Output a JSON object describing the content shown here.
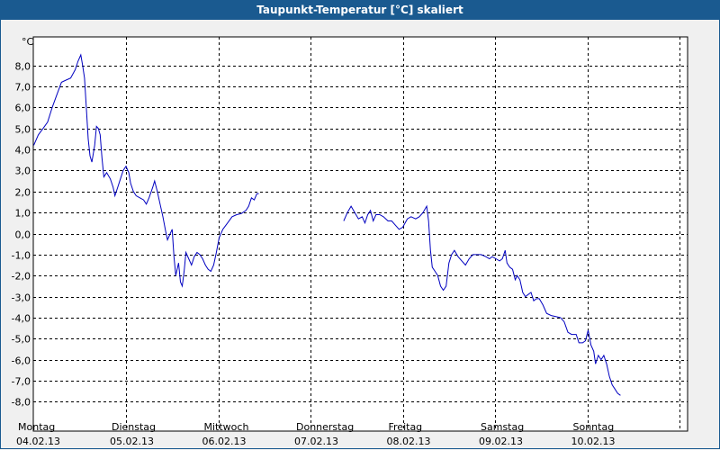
{
  "window": {
    "title": "Taupunkt-Temperatur [°C] skaliert"
  },
  "chart_data": {
    "type": "line",
    "title": "Taupunkt-Temperatur [°C] skaliert",
    "ylabel": "°C",
    "xlabel": "",
    "ylim": [
      -8.5,
      9.25
    ],
    "y_ticks": [
      "8,0",
      "7,0",
      "6,0",
      "5,0",
      "4,0",
      "3,0",
      "2,0",
      "1,0",
      "0,0",
      "-1,0",
      "-2,0",
      "-3,0",
      "-4,0",
      "-5,0",
      "-6,0",
      "-7,0",
      "-8,0"
    ],
    "y_tick_values": [
      8,
      7,
      6,
      5,
      4,
      3,
      2,
      1,
      0,
      -1,
      -2,
      -3,
      -4,
      -5,
      -6,
      -7,
      -8
    ],
    "x_ticks": [
      {
        "day": "Montag",
        "date": "04.02.13"
      },
      {
        "day": "Dienstag",
        "date": "05.02.13"
      },
      {
        "day": "Mittwoch",
        "date": "06.02.13"
      },
      {
        "day": "Donnerstag",
        "date": "07.02.13"
      },
      {
        "day": "Freitag",
        "date": "08.02.13"
      },
      {
        "day": "Samstag",
        "date": "09.02.13"
      },
      {
        "day": "Sonntag",
        "date": "10.02.13"
      }
    ],
    "grid": true,
    "x_unit": "days since start of axis (Monday 04.02.13 00:00)",
    "series": [
      {
        "name": "",
        "color": "#0000c0",
        "segments": [
          [
            [
              0.0,
              4.2
            ],
            [
              0.05,
              4.7
            ],
            [
              0.1,
              5.0
            ],
            [
              0.15,
              5.3
            ],
            [
              0.2,
              6.0
            ],
            [
              0.25,
              6.6
            ],
            [
              0.3,
              7.2
            ],
            [
              0.35,
              7.3
            ],
            [
              0.4,
              7.4
            ],
            [
              0.45,
              7.8
            ],
            [
              0.48,
              8.2
            ],
            [
              0.51,
              8.5
            ],
            [
              0.53,
              8.0
            ],
            [
              0.55,
              7.4
            ],
            [
              0.57,
              6.0
            ],
            [
              0.59,
              4.5
            ],
            [
              0.61,
              3.7
            ],
            [
              0.63,
              3.4
            ],
            [
              0.66,
              4.2
            ],
            [
              0.68,
              5.1
            ],
            [
              0.7,
              5.0
            ],
            [
              0.72,
              4.7
            ],
            [
              0.74,
              3.6
            ],
            [
              0.76,
              2.7
            ],
            [
              0.79,
              2.9
            ],
            [
              0.83,
              2.6
            ],
            [
              0.86,
              2.2
            ],
            [
              0.88,
              1.8
            ],
            [
              0.91,
              2.2
            ],
            [
              0.94,
              2.6
            ],
            [
              0.97,
              3.0
            ],
            [
              1.0,
              3.2
            ],
            [
              1.03,
              2.9
            ],
            [
              1.05,
              2.4
            ],
            [
              1.08,
              2.0
            ],
            [
              1.11,
              1.8
            ],
            [
              1.15,
              1.7
            ],
            [
              1.19,
              1.6
            ],
            [
              1.22,
              1.4
            ],
            [
              1.25,
              1.7
            ],
            [
              1.29,
              2.2
            ],
            [
              1.31,
              2.5
            ],
            [
              1.34,
              2.0
            ],
            [
              1.37,
              1.4
            ],
            [
              1.4,
              0.8
            ],
            [
              1.43,
              0.1
            ],
            [
              1.45,
              -0.3
            ],
            [
              1.48,
              0.0
            ],
            [
              1.5,
              0.2
            ],
            [
              1.52,
              -1.1
            ],
            [
              1.54,
              -2.0
            ],
            [
              1.57,
              -1.4
            ],
            [
              1.59,
              -2.3
            ],
            [
              1.61,
              -2.5
            ],
            [
              1.63,
              -1.8
            ],
            [
              1.65,
              -0.9
            ],
            [
              1.68,
              -1.2
            ],
            [
              1.71,
              -1.5
            ],
            [
              1.74,
              -1.1
            ],
            [
              1.77,
              -0.9
            ],
            [
              1.8,
              -1.0
            ],
            [
              1.83,
              -1.2
            ],
            [
              1.86,
              -1.5
            ],
            [
              1.89,
              -1.7
            ],
            [
              1.92,
              -1.8
            ],
            [
              1.95,
              -1.5
            ],
            [
              1.98,
              -0.9
            ],
            [
              2.01,
              -0.2
            ],
            [
              2.05,
              0.2
            ],
            [
              2.1,
              0.5
            ],
            [
              2.15,
              0.8
            ],
            [
              2.2,
              0.9
            ],
            [
              2.25,
              0.95
            ],
            [
              2.3,
              1.1
            ],
            [
              2.33,
              1.3
            ],
            [
              2.36,
              1.7
            ],
            [
              2.39,
              1.6
            ],
            [
              2.42,
              1.9
            ],
            [
              2.44,
              1.9
            ]
          ],
          [
            [
              3.36,
              0.6
            ],
            [
              3.4,
              1.0
            ],
            [
              3.44,
              1.3
            ],
            [
              3.48,
              1.0
            ],
            [
              3.52,
              0.7
            ],
            [
              3.56,
              0.8
            ],
            [
              3.59,
              0.5
            ],
            [
              3.62,
              0.9
            ],
            [
              3.65,
              1.1
            ],
            [
              3.68,
              0.6
            ],
            [
              3.71,
              0.9
            ],
            [
              3.75,
              0.9
            ],
            [
              3.79,
              0.8
            ],
            [
              3.84,
              0.6
            ],
            [
              3.88,
              0.6
            ],
            [
              3.92,
              0.4
            ],
            [
              3.96,
              0.2
            ],
            [
              4.0,
              0.3
            ],
            [
              4.05,
              0.7
            ],
            [
              4.09,
              0.8
            ],
            [
              4.14,
              0.7
            ],
            [
              4.18,
              0.8
            ],
            [
              4.22,
              1.0
            ],
            [
              4.26,
              1.3
            ],
            [
              4.28,
              0.6
            ],
            [
              4.3,
              -0.8
            ],
            [
              4.32,
              -1.6
            ],
            [
              4.35,
              -1.8
            ],
            [
              4.38,
              -2.0
            ],
            [
              4.41,
              -2.5
            ],
            [
              4.44,
              -2.7
            ],
            [
              4.47,
              -2.5
            ],
            [
              4.5,
              -1.4
            ],
            [
              4.53,
              -1.0
            ],
            [
              4.56,
              -0.8
            ],
            [
              4.6,
              -1.1
            ],
            [
              4.64,
              -1.3
            ],
            [
              4.68,
              -1.5
            ],
            [
              4.72,
              -1.2
            ],
            [
              4.76,
              -1.0
            ],
            [
              4.81,
              -1.0
            ],
            [
              4.85,
              -1.0
            ],
            [
              4.9,
              -1.1
            ],
            [
              4.94,
              -1.2
            ],
            [
              4.97,
              -1.1
            ],
            [
              5.01,
              -1.2
            ],
            [
              5.05,
              -1.3
            ],
            [
              5.08,
              -1.2
            ],
            [
              5.11,
              -0.8
            ],
            [
              5.13,
              -1.4
            ],
            [
              5.16,
              -1.6
            ],
            [
              5.19,
              -1.7
            ],
            [
              5.22,
              -2.2
            ],
            [
              5.24,
              -2.0
            ],
            [
              5.27,
              -2.2
            ],
            [
              5.3,
              -2.8
            ],
            [
              5.33,
              -3.0
            ],
            [
              5.36,
              -2.9
            ],
            [
              5.39,
              -2.8
            ],
            [
              5.42,
              -3.2
            ],
            [
              5.45,
              -3.1
            ],
            [
              5.48,
              -3.1
            ],
            [
              5.52,
              -3.4
            ],
            [
              5.56,
              -3.8
            ],
            [
              5.61,
              -3.9
            ],
            [
              5.66,
              -3.95
            ],
            [
              5.71,
              -4.0
            ],
            [
              5.75,
              -4.2
            ],
            [
              5.79,
              -4.7
            ],
            [
              5.83,
              -4.8
            ],
            [
              5.88,
              -4.8
            ],
            [
              5.91,
              -5.2
            ],
            [
              5.95,
              -5.2
            ],
            [
              5.98,
              -5.1
            ],
            [
              6.01,
              -4.6
            ],
            [
              6.04,
              -5.3
            ],
            [
              6.07,
              -5.6
            ],
            [
              6.09,
              -6.2
            ],
            [
              6.12,
              -5.8
            ],
            [
              6.15,
              -6.0
            ],
            [
              6.18,
              -5.8
            ],
            [
              6.21,
              -6.2
            ],
            [
              6.24,
              -6.8
            ],
            [
              6.27,
              -7.2
            ],
            [
              6.3,
              -7.4
            ],
            [
              6.33,
              -7.6
            ],
            [
              6.36,
              -7.7
            ]
          ]
        ]
      }
    ]
  }
}
